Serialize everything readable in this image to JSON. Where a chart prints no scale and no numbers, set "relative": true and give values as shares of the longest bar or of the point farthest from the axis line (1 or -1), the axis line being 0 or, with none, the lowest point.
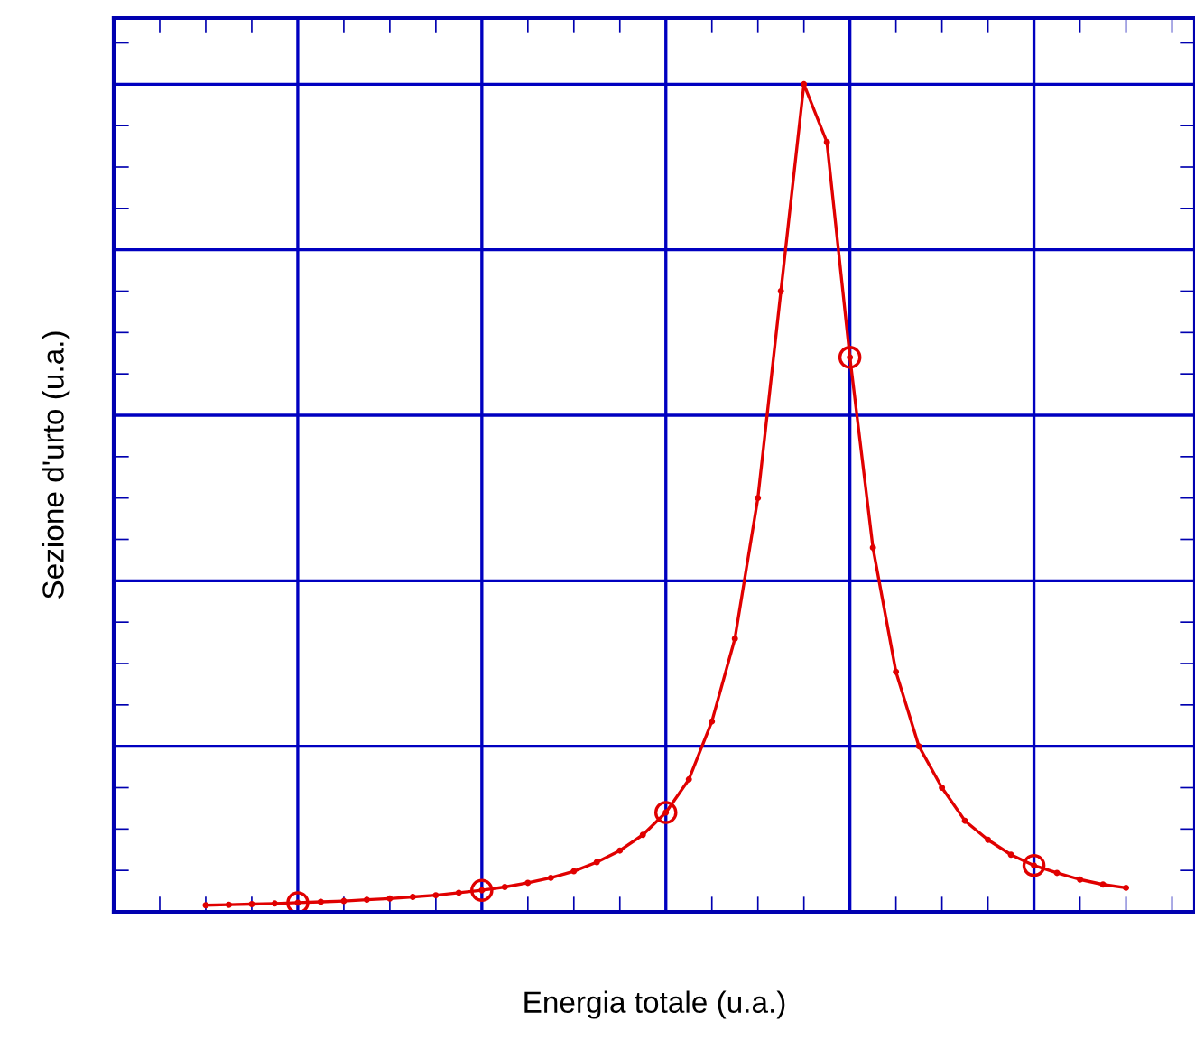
{
  "chart_data": {
    "type": "line",
    "relative": true,
    "xlabel": "Energia totale (u.a.)",
    "ylabel": "Sezione d'urto (u.a.)",
    "grid": true,
    "marker": "circle",
    "categories": [
      null,
      null,
      null,
      null,
      null,
      null,
      null,
      null,
      null,
      null,
      null,
      null,
      null,
      null,
      null,
      null,
      null,
      null,
      null,
      null,
      null,
      null,
      null,
      null,
      null,
      null,
      null,
      null,
      null,
      null,
      null,
      null,
      null,
      null,
      null,
      null,
      null,
      null,
      null,
      null,
      null
    ],
    "series": [
      {
        "color": "#e00000",
        "values": [
          0.0079,
          0.0085,
          0.0093,
          0.01,
          0.011,
          0.012,
          0.013,
          0.0146,
          0.016,
          0.018,
          0.02,
          0.023,
          0.026,
          0.03,
          0.035,
          0.041,
          0.049,
          0.06,
          0.074,
          0.093,
          0.12,
          0.16,
          0.23,
          0.33,
          0.5,
          0.75,
          1,
          0.93,
          0.67,
          0.44,
          0.29,
          0.2,
          0.15,
          0.11,
          0.087,
          0.069,
          0.056,
          0.047,
          0.039,
          0.033,
          0.029
        ]
      }
    ]
  }
}
